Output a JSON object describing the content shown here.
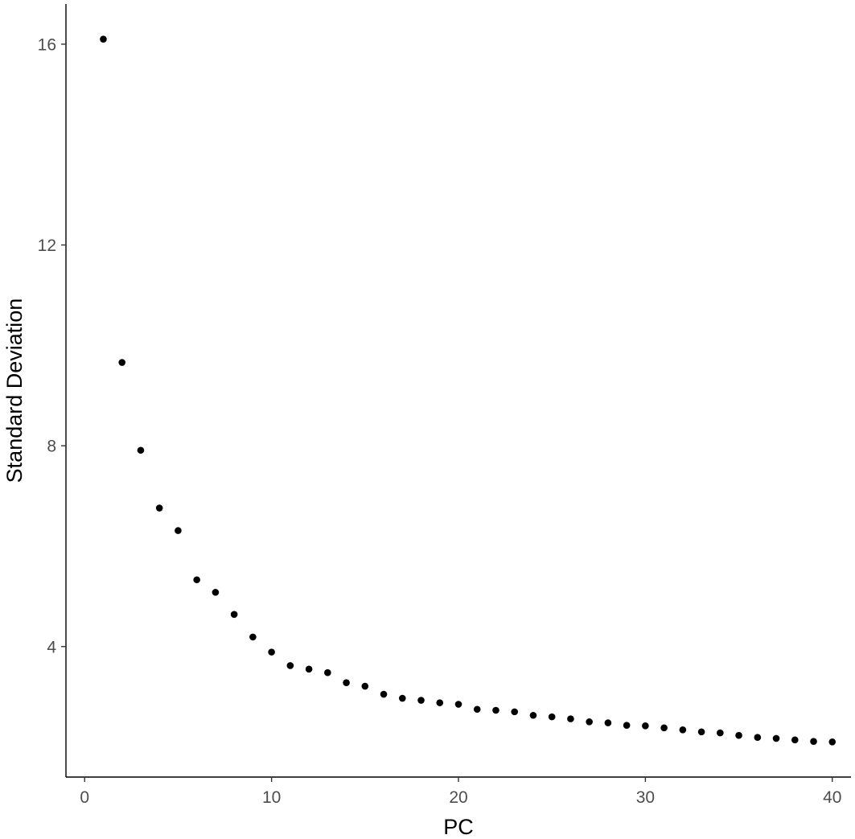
{
  "chart_data": {
    "type": "scatter",
    "title": "",
    "xlabel": "PC",
    "ylabel": "Standard Deviation",
    "xlim": [
      -1,
      41
    ],
    "ylim": [
      1.4,
      16.8
    ],
    "xticks": [
      0,
      10,
      20,
      30,
      40
    ],
    "yticks": [
      4,
      8,
      12,
      16
    ],
    "grid": false,
    "point_color": "#000000",
    "series": [
      {
        "x": [
          1,
          2,
          3,
          4,
          5,
          6,
          7,
          8,
          9,
          10,
          11,
          12,
          13,
          14,
          15,
          16,
          17,
          18,
          19,
          20,
          21,
          22,
          23,
          24,
          25,
          26,
          27,
          28,
          29,
          30,
          31,
          32,
          33,
          34,
          35,
          36,
          37,
          38,
          39,
          40
        ],
        "y": [
          16.1,
          9.66,
          7.91,
          6.76,
          6.31,
          5.33,
          5.08,
          4.64,
          4.19,
          3.89,
          3.62,
          3.55,
          3.48,
          3.28,
          3.21,
          3.05,
          2.97,
          2.93,
          2.88,
          2.85,
          2.75,
          2.73,
          2.7,
          2.63,
          2.6,
          2.56,
          2.5,
          2.48,
          2.43,
          2.42,
          2.38,
          2.34,
          2.3,
          2.28,
          2.23,
          2.19,
          2.17,
          2.14,
          2.11,
          2.1
        ]
      }
    ]
  }
}
